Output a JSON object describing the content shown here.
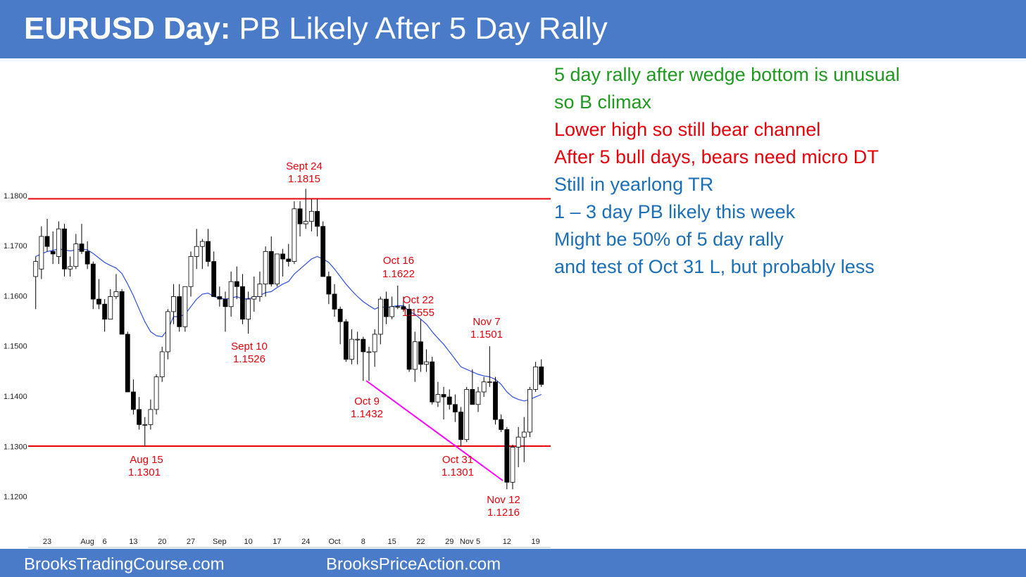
{
  "header": {
    "title_bold": "EURUSD Day:",
    "title_rest": "PB Likely After 5 Day Rally"
  },
  "notes": [
    {
      "text": "5 day rally after wedge bottom is unusual",
      "color": "#1f9a1f"
    },
    {
      "text": "so B climax",
      "color": "#1f9a1f"
    },
    {
      "text": "Lower high so still bear channel",
      "color": "#e8000b"
    },
    {
      "text": "After 5 bull days, bears need micro DT",
      "color": "#e8000b"
    },
    {
      "text": "Still in yearlong TR",
      "color": "#1b6fb8"
    },
    {
      "text": "1 – 3 day PB likely this week",
      "color": "#1b6fb8"
    },
    {
      "text": "Might be 50% of 5 day rally",
      "color": "#1b6fb8"
    },
    {
      "text": "and test of Oct 31 L, but probably less",
      "color": "#1b6fb8"
    }
  ],
  "footer": {
    "left": "BrooksTradingCourse.com",
    "right": "BrooksPriceAction.com"
  },
  "chart_data": {
    "type": "candlestick",
    "categories": [
      null,
      null,
      "23",
      null,
      null,
      null,
      null,
      null,
      null,
      "Aug",
      null,
      null,
      "6",
      null,
      null,
      null,
      null,
      "13",
      null,
      null,
      null,
      null,
      "20",
      null,
      null,
      null,
      null,
      "27",
      null,
      null,
      null,
      null,
      "Sep",
      null,
      null,
      null,
      null,
      "10",
      null,
      null,
      null,
      null,
      "17",
      null,
      null,
      null,
      null,
      "24",
      null,
      null,
      null,
      null,
      "Oct",
      null,
      null,
      null,
      null,
      "8",
      null,
      null,
      null,
      null,
      "15",
      null,
      null,
      null,
      null,
      "22",
      null,
      null,
      null,
      null,
      "29",
      null,
      null,
      "Nov",
      null,
      "5",
      null,
      null,
      null,
      null,
      "12",
      null,
      null,
      null,
      null,
      "19",
      null
    ],
    "open": [
      1.164,
      1.1655,
      1.172,
      1.169,
      1.168,
      1.1735,
      1.1655,
      1.166,
      1.1705,
      1.169,
      1.1665,
      1.1595,
      1.1585,
      1.1555,
      1.16,
      1.161,
      1.1525,
      1.141,
      1.1375,
      1.1345,
      1.1345,
      1.1375,
      1.144,
      1.149,
      1.157,
      1.16,
      1.154,
      1.162,
      1.168,
      1.17,
      1.171,
      1.167,
      1.16,
      1.1595,
      1.158,
      1.163,
      1.162,
      1.1555,
      1.1595,
      1.16,
      1.1625,
      1.169,
      1.1625,
      1.1685,
      1.1675,
      1.167,
      1.1775,
      1.1745,
      1.175,
      1.177,
      1.174,
      1.164,
      1.1605,
      1.1575,
      1.155,
      1.1475,
      1.1515,
      1.1515,
      1.149,
      1.149,
      1.1525,
      1.1595,
      1.156,
      1.158,
      1.158,
      1.1575,
      1.1455,
      1.151,
      1.1465,
      1.147,
      1.139,
      1.1405,
      1.14,
      1.1385,
      1.137,
      1.1315,
      1.1415,
      1.1385,
      1.141,
      1.143,
      1.143,
      1.1355,
      1.1335,
      1.123,
      1.13,
      1.132,
      1.133,
      1.1415,
      1.146
    ],
    "high": [
      1.168,
      1.174,
      1.1755,
      1.173,
      1.175,
      1.1745,
      1.168,
      1.1725,
      1.1745,
      1.171,
      1.167,
      1.1635,
      1.1595,
      1.1615,
      1.1645,
      1.1615,
      1.153,
      1.1435,
      1.14,
      1.136,
      1.1395,
      1.1445,
      1.15,
      1.1575,
      1.1625,
      1.1625,
      1.162,
      1.169,
      1.1735,
      1.1715,
      1.1735,
      1.169,
      1.162,
      1.161,
      1.165,
      1.166,
      1.1645,
      1.161,
      1.164,
      1.165,
      1.17,
      1.172,
      1.1685,
      1.1695,
      1.1705,
      1.179,
      1.179,
      1.1815,
      1.1795,
      1.1795,
      1.175,
      1.165,
      1.1625,
      1.158,
      1.1555,
      1.1535,
      1.153,
      1.152,
      1.15,
      1.1535,
      1.16,
      1.161,
      1.16,
      1.1622,
      1.16,
      1.1585,
      1.153,
      1.1555,
      1.1495,
      1.148,
      1.143,
      1.142,
      1.1415,
      1.1405,
      1.138,
      1.142,
      1.1455,
      1.142,
      1.144,
      1.1501,
      1.144,
      1.1365,
      1.134,
      1.1305,
      1.134,
      1.136,
      1.142,
      1.147,
      1.1475
    ],
    "low": [
      1.1575,
      1.1635,
      1.169,
      1.1665,
      1.1665,
      1.164,
      1.164,
      1.1655,
      1.1685,
      1.1655,
      1.1575,
      1.1575,
      1.153,
      1.1555,
      1.1595,
      1.1525,
      1.141,
      1.1365,
      1.1335,
      1.1301,
      1.1335,
      1.1365,
      1.143,
      1.1475,
      1.1545,
      1.153,
      1.153,
      1.16,
      1.1655,
      1.1655,
      1.166,
      1.16,
      1.158,
      1.153,
      1.156,
      1.1595,
      1.1545,
      1.1526,
      1.157,
      1.159,
      1.16,
      1.162,
      1.162,
      1.164,
      1.166,
      1.1665,
      1.172,
      1.1735,
      1.173,
      1.172,
      1.164,
      1.1585,
      1.156,
      1.1505,
      1.147,
      1.1465,
      1.1465,
      1.1432,
      1.1432,
      1.146,
      1.1505,
      1.1545,
      1.1555,
      1.1575,
      1.157,
      1.145,
      1.143,
      1.145,
      1.145,
      1.1385,
      1.138,
      1.1355,
      1.1375,
      1.135,
      1.1301,
      1.131,
      1.1385,
      1.137,
      1.14,
      1.142,
      1.1345,
      1.133,
      1.1216,
      1.1216,
      1.126,
      1.127,
      1.132,
      1.141,
      1.142
    ],
    "close": [
      1.167,
      1.172,
      1.17,
      1.1685,
      1.1735,
      1.1655,
      1.166,
      1.1705,
      1.169,
      1.1665,
      1.1595,
      1.1585,
      1.1555,
      1.16,
      1.161,
      1.1525,
      1.141,
      1.1375,
      1.1345,
      1.1345,
      1.1375,
      1.144,
      1.149,
      1.157,
      1.16,
      1.154,
      1.162,
      1.168,
      1.17,
      1.171,
      1.167,
      1.16,
      1.1595,
      1.158,
      1.163,
      1.162,
      1.1555,
      1.1595,
      1.16,
      1.1625,
      1.169,
      1.1625,
      1.1685,
      1.1675,
      1.167,
      1.1775,
      1.1745,
      1.175,
      1.177,
      1.174,
      1.164,
      1.1605,
      1.1575,
      1.155,
      1.1475,
      1.1515,
      1.1515,
      1.149,
      1.149,
      1.1525,
      1.1595,
      1.156,
      1.158,
      1.158,
      1.1575,
      1.1455,
      1.151,
      1.1465,
      1.147,
      1.139,
      1.1405,
      1.14,
      1.1385,
      1.137,
      1.1315,
      1.1415,
      1.1385,
      1.141,
      1.143,
      1.143,
      1.1355,
      1.1335,
      1.123,
      1.13,
      1.132,
      1.133,
      1.1415,
      1.146,
      1.1425
    ],
    "ma": {
      "color": "#2f4fe0",
      "values": [
        1.168,
        1.1685,
        1.169,
        1.1692,
        1.1695,
        1.1693,
        1.1691,
        1.1693,
        1.1695,
        1.1693,
        1.1686,
        1.1677,
        1.1668,
        1.1662,
        1.1657,
        1.1646,
        1.1625,
        1.1602,
        1.1575,
        1.155,
        1.153,
        1.1522,
        1.152,
        1.1535,
        1.156,
        1.156,
        1.1565,
        1.158,
        1.1595,
        1.1605,
        1.1607,
        1.16,
        1.1597,
        1.1595,
        1.1597,
        1.16,
        1.1595,
        1.1596,
        1.1598,
        1.1602,
        1.1608,
        1.161,
        1.1618,
        1.1625,
        1.163,
        1.1645,
        1.1655,
        1.1665,
        1.1675,
        1.168,
        1.1675,
        1.1668,
        1.1655,
        1.164,
        1.1625,
        1.1612,
        1.16,
        1.159,
        1.1582,
        1.1575,
        1.158,
        1.1578,
        1.158,
        1.1582,
        1.1582,
        1.157,
        1.1565,
        1.1555,
        1.1545,
        1.153,
        1.1517,
        1.1505,
        1.149,
        1.1475,
        1.146,
        1.1455,
        1.145,
        1.1445,
        1.1442,
        1.144,
        1.1435,
        1.1425,
        1.141,
        1.14,
        1.1395,
        1.1392,
        1.1395,
        1.14,
        1.1405
      ]
    },
    "hlines": {
      "color": "#e8000b",
      "values": [
        1.1795,
        1.1302
      ]
    },
    "ylim": [
      1.11,
      1.2072
    ],
    "yticks": [
      {
        "value": 1.12,
        "label": "1.1200"
      },
      {
        "value": 1.13,
        "label": "1.1300"
      },
      {
        "value": 1.14,
        "label": "1.1400"
      },
      {
        "value": 1.15,
        "label": "1.1500"
      },
      {
        "value": 1.16,
        "label": "1.1600"
      },
      {
        "value": 1.17,
        "label": "1.1700"
      },
      {
        "value": 1.18,
        "label": "1.1800"
      }
    ],
    "bull_color": "#ffffff",
    "bear_color": "#000000",
    "annotations": [
      [
        "Sept 24",
        "1.1815"
      ],
      [
        "Oct 16",
        "1.1622"
      ],
      [
        "Oct 22",
        "1.1555"
      ],
      [
        "Nov 7",
        "1.1501"
      ],
      [
        "Sept 10",
        "1.1526"
      ],
      [
        "Oct 9",
        "1.1432"
      ],
      [
        "Aug 15",
        "1.1301"
      ],
      [
        "Oct 31",
        "1.1301"
      ],
      [
        "Nov 12",
        "1.1216"
      ]
    ]
  }
}
